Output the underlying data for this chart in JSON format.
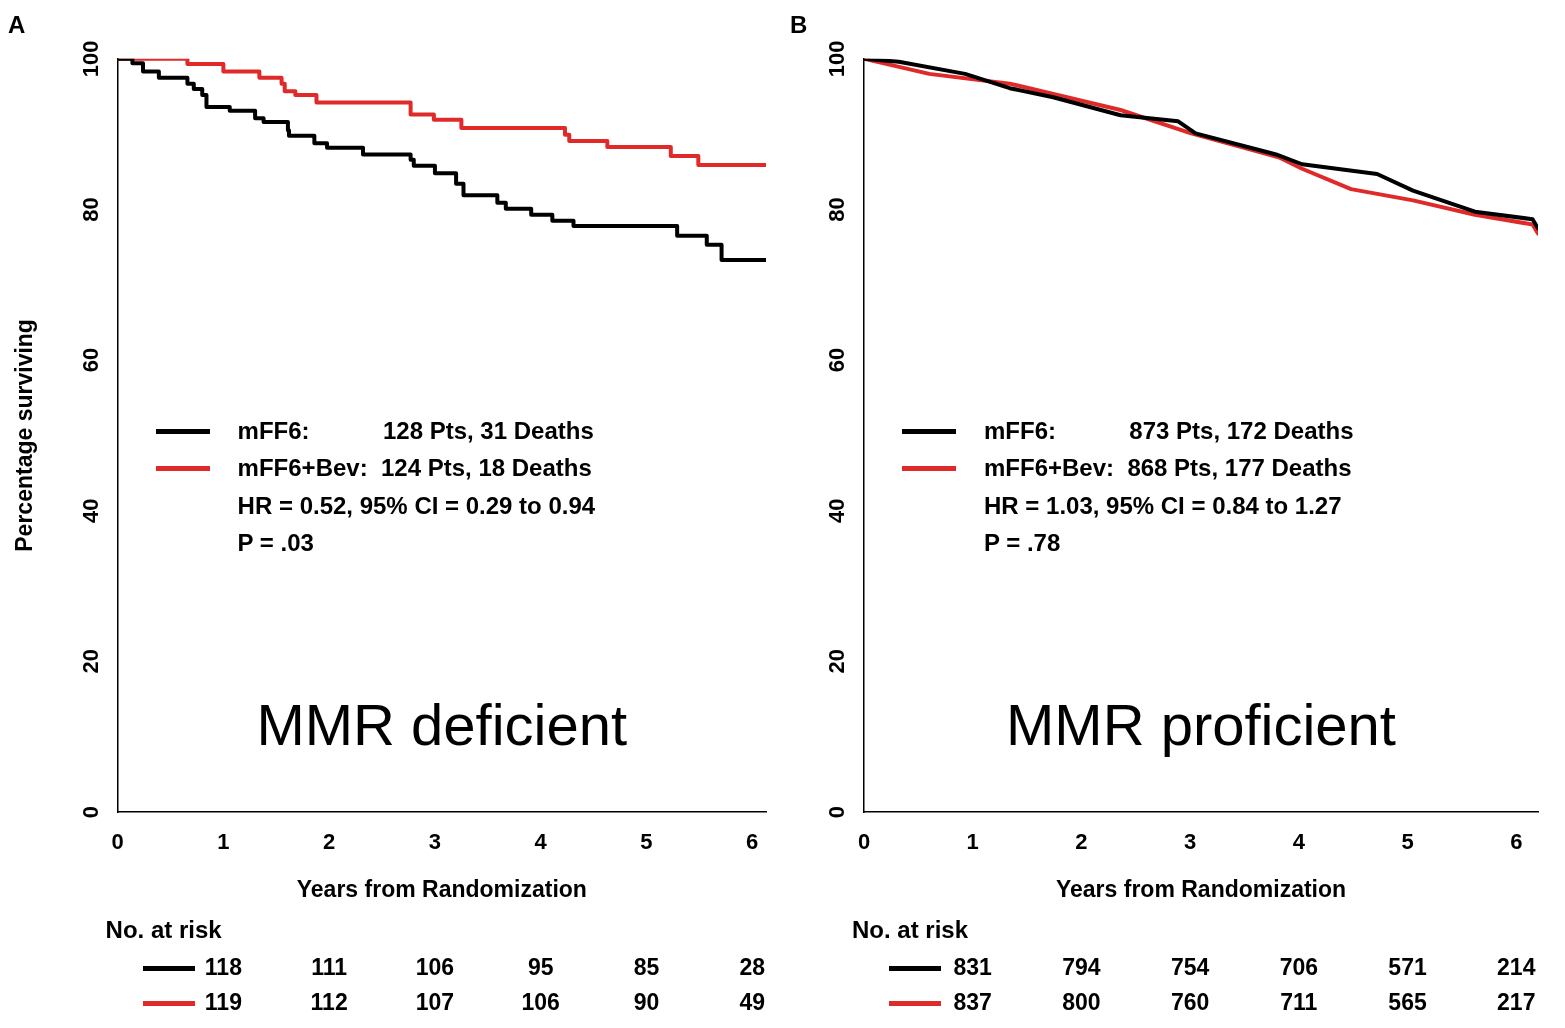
{
  "chart_data": [
    {
      "type": "step",
      "title": "A",
      "subtitle": "MMR deficient",
      "xlabel": "Years from Randomization",
      "ylabel": "Percentage surviving",
      "xlim": [
        0,
        6.13
      ],
      "xticks": [
        0,
        1,
        2,
        3,
        4,
        5,
        6
      ],
      "ylim": [
        0,
        100
      ],
      "yticks": [
        0,
        20,
        40,
        60,
        80,
        100
      ],
      "grid": false,
      "legend": "left",
      "series": [
        {
          "name": "mFF6:           128 Pts, 31 Deaths",
          "color": "#000000",
          "x": [
            0,
            0.14,
            0.24,
            0.39,
            0.66,
            0.72,
            0.8,
            0.84,
            1.06,
            1.3,
            1.38,
            1.61,
            1.62,
            1.86,
            1.98,
            2.32,
            2.77,
            2.8,
            3.0,
            3.2,
            3.27,
            3.59,
            3.67,
            3.91,
            4.11,
            4.31,
            5.29,
            5.57,
            5.71,
            6.13
          ],
          "values": [
            100,
            99.4,
            98.3,
            97.5,
            96.7,
            96,
            95.2,
            93.6,
            93.1,
            92.1,
            91.6,
            90.5,
            89.8,
            88.8,
            88.2,
            87.3,
            86.6,
            85.8,
            84.8,
            83.4,
            81.9,
            80.9,
            80.1,
            79.3,
            78.5,
            77.8,
            76.5,
            75.3,
            73.3,
            73.3
          ]
        },
        {
          "name": "mFF6+Bev:  124 Pts, 18 Deaths",
          "color": "#e02a2a",
          "x": [
            0,
            0.66,
            1.0,
            1.34,
            1.55,
            1.58,
            1.68,
            1.88,
            2.77,
            2.99,
            3.25,
            4.23,
            4.27,
            4.63,
            5.23,
            5.49,
            6.13
          ],
          "values": [
            100,
            99.3,
            98.3,
            97.5,
            96.7,
            95.7,
            95.2,
            94.2,
            92.6,
            91.9,
            90.8,
            89.9,
            89.1,
            88.3,
            87.1,
            85.9,
            85.9
          ]
        }
      ],
      "annotations": [
        "HR = 0.52, 95% CI = 0.29 to 0.94",
        "P = .03",
        "No. at risk",
        "118",
        "111",
        "106",
        "95",
        "85",
        "28",
        "119",
        "112",
        "107",
        "106",
        "90",
        "49"
      ]
    },
    {
      "type": "line",
      "title": "B",
      "subtitle": "MMR proficient",
      "xlabel": "Years from Randomization",
      "xlim": [
        0,
        6.2
      ],
      "xticks": [
        0,
        1,
        2,
        3,
        4,
        5,
        6
      ],
      "ylim": [
        0,
        100
      ],
      "yticks": [
        0,
        20,
        40,
        60,
        80,
        100
      ],
      "grid": false,
      "legend": "left",
      "series": [
        {
          "name": "mFF6:           873 Pts, 172 Deaths",
          "color": "#000000",
          "x": [
            0,
            0.32,
            0.93,
            1.34,
            1.74,
            2.36,
            2.89,
            3.05,
            3.79,
            4.03,
            4.72,
            5.05,
            5.62,
            6.15,
            6.2
          ],
          "values": [
            100,
            99.6,
            98,
            96.1,
            94.9,
            92.5,
            91.7,
            90.1,
            87.3,
            86,
            84.7,
            82.5,
            79.7,
            78.7,
            77.5
          ]
        },
        {
          "name": "mFF6+Bev:  868 Pts, 177 Deaths",
          "color": "#e02a2a",
          "x": [
            0,
            0.6,
            1.34,
            2.36,
            3.01,
            3.82,
            4.03,
            4.48,
            5.05,
            5.62,
            6.15,
            6.2
          ],
          "values": [
            100,
            98,
            96.7,
            93.2,
            90.1,
            86.9,
            85.4,
            82.7,
            81.2,
            79.3,
            78,
            76.8
          ]
        }
      ],
      "annotations": [
        "HR = 1.03, 95% CI = 0.84 to 1.27",
        "P = .78",
        "No. at risk",
        "831",
        "794",
        "754",
        "706",
        "571",
        "214",
        "837",
        "800",
        "760",
        "711",
        "565",
        "217"
      ]
    }
  ]
}
